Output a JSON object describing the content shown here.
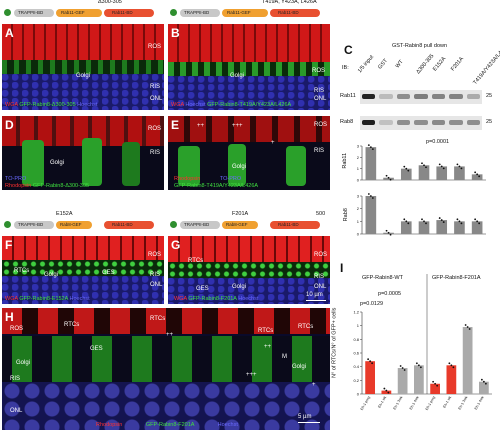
{
  "domain_header": {
    "left_construct": {
      "domains": [
        "TRAPPII-BD",
        "Rab11-GEF",
        "Rab11-BD"
      ],
      "mutation_label": "Δ300-305"
    },
    "right_construct": {
      "domains": [
        "TRAPPII-BD",
        "Rab11-GEF",
        "Rab11-BD"
      ],
      "mutation_label": "T419A, Y423A, L426A"
    },
    "bottom_left_construct": {
      "domains": [
        "TRAPPII-BD",
        "Rab8-GEF",
        "Rab11-BD"
      ],
      "mutation_label": "E152A"
    },
    "bottom_right_construct": {
      "domains": [
        "TRAPPII-BD",
        "Rab8-GEF",
        "Rab11-BD"
      ],
      "mutation_label": "F201A"
    },
    "end_number": "500"
  },
  "panels": {
    "A": {
      "letter": "A",
      "labels": [
        "ROS",
        "RIS",
        "ONL"
      ],
      "golgi": "Golgi",
      "caption_red": "WGA",
      "caption_green": "GFP-Rabin8-Δ300-305",
      "caption_blue": "Hoechst"
    },
    "B": {
      "letter": "B",
      "labels": [
        "ROS",
        "RIS",
        "ONL"
      ],
      "golgi": "Golgi",
      "caption_red": "WGA",
      "caption_blue": "Hoechst",
      "caption_green": "GFP-Rabin8-T419A/Y423A/L426A"
    },
    "C": {
      "letter": "C",
      "title": "GST-Rabin8 pull down",
      "lanes": [
        "1/5 input",
        "GST",
        "WT",
        "Δ300-305",
        "E152A",
        "F201A",
        "T419A/Y423A/L426A"
      ],
      "ib_label": "IB:",
      "row1": "Rab11",
      "row2": "Rab8",
      "mw1": "25",
      "mw2": "25",
      "y1_label": "Rab11",
      "y2_label": "Rab8",
      "sig": "p=0.0001"
    },
    "D": {
      "letter": "D",
      "labels": [
        "ROS",
        "RIS"
      ],
      "golgi": "Golgi",
      "caption_blue": "TO-PRO",
      "caption_red": "Rhodopsin",
      "caption_green": "GFP-Rabin8-Δ300-305"
    },
    "E": {
      "letter": "E",
      "labels": [
        "ROS",
        "RIS"
      ],
      "golgi": "Golgi",
      "caption_red": "Rhodopsin",
      "caption_blue": "TO-PRO",
      "caption_green": "GFP-Rabin8-T419A/Y423A/L426A",
      "marks": [
        "++",
        "+++",
        "+"
      ]
    },
    "F": {
      "letter": "F",
      "labels": [
        "ROS",
        "RIS",
        "ONL"
      ],
      "rtcs": "RTCs",
      "golgi": "Golgi",
      "ges": "GES",
      "caption_red": "WGA",
      "caption_green": "GFP-Rabin8-E152A",
      "caption_blue": "Hoechst"
    },
    "G": {
      "letter": "G",
      "labels": [
        "ROS",
        "RIS",
        "ONL"
      ],
      "rtcs": "RTCs",
      "golgi": "Golgi",
      "ges": "GES",
      "caption_red": "WGA",
      "caption_green": "GFP-Rabin8-F201A",
      "caption_blue": "Hoechst",
      "scale": "10 µm"
    },
    "H": {
      "letter": "H",
      "labels": [
        "ROS",
        "RIS",
        "ONL"
      ],
      "rtcs": "RTCs",
      "golgi": "Golgi",
      "ges": "GES",
      "caption_red": "Rhodopsin",
      "caption_green": "GFP-Rabin8-F201A",
      "caption_blue": "Hoechst",
      "scale": "5 µm",
      "marks": [
        "++",
        "++",
        "+++",
        "M",
        "+"
      ]
    },
    "I": {
      "letter": "I",
      "ylabel": "N° of RTCs/N° of GFP+ cells",
      "group1": "GFP-Rabin8-WT",
      "group2": "GFP-Rabin8-F201A",
      "p1": "p=0.0005",
      "p2": "p=0.0129"
    }
  },
  "chart_data": [
    {
      "type": "bar",
      "title": "",
      "categories": [
        "1/5 input",
        "GST",
        "WT",
        "Δ300-305",
        "E152A",
        "F201A",
        "T419A/Y423A/L426A"
      ],
      "series": [
        {
          "name": "Rab11",
          "values": [
            2.9,
            0.2,
            1.0,
            1.3,
            1.2,
            1.2,
            0.5
          ]
        }
      ],
      "ylim": [
        0,
        3
      ]
    },
    {
      "type": "bar",
      "title": "",
      "categories": [
        "1/5 input",
        "GST",
        "WT",
        "Δ300-305",
        "E152A",
        "F201A",
        "T419A/Y423A/L426A"
      ],
      "series": [
        {
          "name": "Rab8",
          "values": [
            3.0,
            0.1,
            1.0,
            1.0,
            1.1,
            1.0,
            1.0
          ]
        }
      ],
      "ylim": [
        0,
        3
      ]
    },
    {
      "type": "bar",
      "title": "",
      "xlabel": "",
      "ylabel": "N° of RTCs/N° of GFP+ cells",
      "categories": [
        "Eh-1 pmg",
        "Eh-1 wk",
        "Eh-1 3wk",
        "Eh-1 4wk",
        "Eh-1 pmg",
        "Eh-1 wk",
        "Eh-1 3wk",
        "Eh-1 4wk"
      ],
      "values": [
        0.48,
        0.05,
        0.38,
        0.42,
        0.15,
        0.42,
        0.98,
        0.18
      ],
      "colors": [
        "#e83a2a",
        "#e83a2a",
        "#aaaaaa",
        "#aaaaaa",
        "#e83a2a",
        "#e83a2a",
        "#aaaaaa",
        "#aaaaaa"
      ],
      "ylim": [
        0,
        1.2
      ]
    }
  ],
  "colors": {
    "red": "#e8202a",
    "green": "#38c838",
    "blue": "#2a2aa0",
    "domain_orange": "#f0a030",
    "domain_red": "#e85030",
    "domain_gray": "#c8c8c8"
  }
}
